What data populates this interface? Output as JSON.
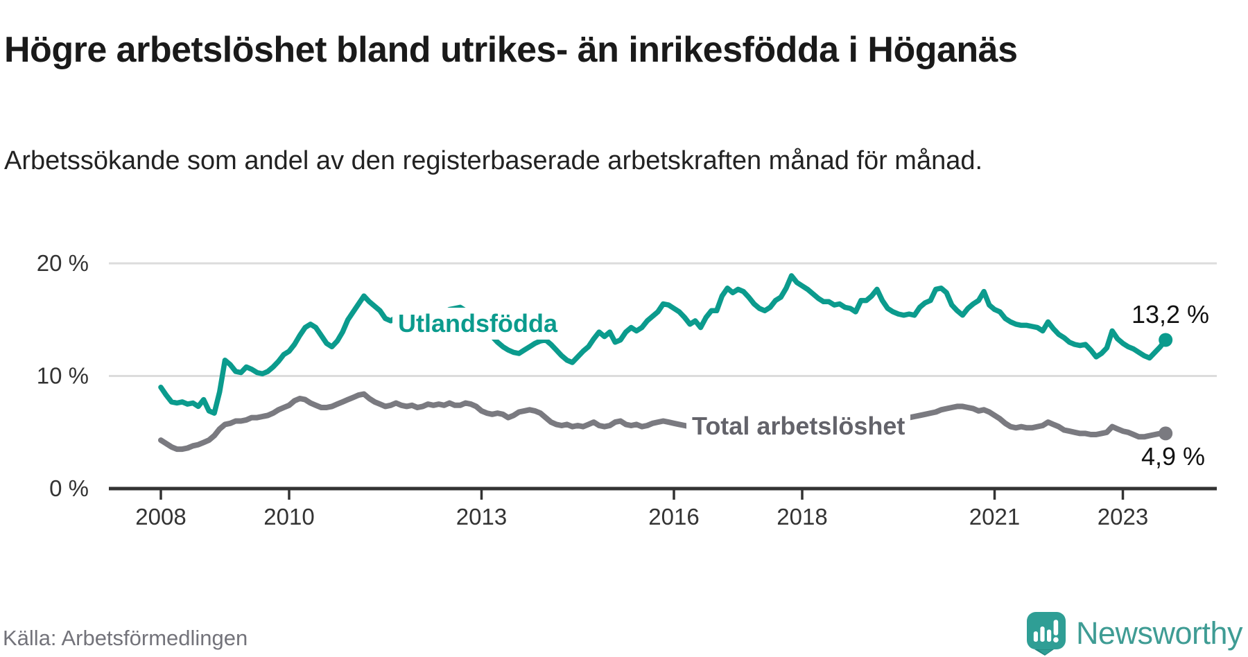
{
  "header": {
    "title": "Högre arbetslöshet bland utrikes- än inrikesfödda i Höganäs",
    "subtitle": "Arbetssökande som andel av den registerbaserade arbetskraften månad för månad."
  },
  "footer": {
    "source": "Källa: Arbetsförmedlingen",
    "brand_name": "Newsworthy",
    "brand_color": "#3f9c94"
  },
  "colors": {
    "foreign_born_line": "#0b9b8d",
    "total_line": "#7a7a80",
    "grid": "#dcdcdc",
    "axis": "#333333",
    "end_label_text": "#111111"
  },
  "chart_data": {
    "type": "line",
    "title": "Högre arbetslöshet bland utrikes- än inrikesfödda i Höganäs",
    "subtitle": "Arbetssökande som andel av den registerbaserade arbetskraften månad för månad.",
    "unit": "% av registerbaserad arbetskraft",
    "frequency": "monthly",
    "x_start": "2008-01",
    "x_end": "2023-09",
    "ylim": [
      0,
      20
    ],
    "grid": "horizontal",
    "yticks": [
      {
        "value": 0,
        "label": "0 %"
      },
      {
        "value": 10,
        "label": "10 %"
      },
      {
        "value": 20,
        "label": "20 %"
      }
    ],
    "xticks": [
      {
        "year": 2008,
        "label": "2008"
      },
      {
        "year": 2010,
        "label": "2010"
      },
      {
        "year": 2013,
        "label": "2013"
      },
      {
        "year": 2016,
        "label": "2016"
      },
      {
        "year": 2018,
        "label": "2018"
      },
      {
        "year": 2021,
        "label": "2021"
      },
      {
        "year": 2023,
        "label": "2023"
      }
    ],
    "series": [
      {
        "name": "Utlandsfödda",
        "color": "#0b9b8d",
        "end_value_label": "13,2 %",
        "last_value": 13.2,
        "values": [
          9.0,
          8.3,
          7.7,
          7.6,
          7.7,
          7.5,
          7.6,
          7.3,
          7.9,
          6.9,
          6.7,
          8.6,
          11.4,
          11.0,
          10.4,
          10.3,
          10.8,
          10.6,
          10.3,
          10.2,
          10.4,
          10.8,
          11.3,
          11.9,
          12.2,
          12.8,
          13.6,
          14.3,
          14.6,
          14.3,
          13.6,
          12.9,
          12.6,
          13.1,
          13.9,
          15.0,
          15.7,
          16.4,
          17.1,
          16.6,
          16.2,
          15.8,
          15.1,
          14.9,
          15.2,
          15.4,
          15.3,
          15.6,
          15.8,
          15.6,
          15.7,
          15.7,
          15.5,
          15.6,
          15.9,
          16.0,
          16.1,
          15.8,
          15.4,
          15.0,
          14.5,
          14.0,
          13.5,
          13.0,
          12.6,
          12.3,
          12.1,
          12.0,
          12.3,
          12.6,
          12.9,
          13.1,
          13.2,
          12.8,
          12.3,
          11.8,
          11.4,
          11.2,
          11.7,
          12.2,
          12.6,
          13.3,
          13.9,
          13.5,
          13.9,
          13.0,
          13.2,
          13.9,
          14.3,
          14.0,
          14.3,
          14.9,
          15.3,
          15.7,
          16.4,
          16.3,
          16.0,
          15.7,
          15.2,
          14.6,
          14.9,
          14.3,
          15.2,
          15.8,
          15.8,
          17.1,
          17.8,
          17.4,
          17.7,
          17.5,
          17.0,
          16.4,
          16.0,
          15.8,
          16.1,
          16.7,
          17.0,
          17.8,
          18.9,
          18.3,
          18.0,
          17.7,
          17.3,
          16.9,
          16.6,
          16.6,
          16.3,
          16.4,
          16.1,
          16.0,
          15.7,
          16.7,
          16.7,
          17.1,
          17.7,
          16.7,
          16.0,
          15.7,
          15.5,
          15.4,
          15.5,
          15.4,
          16.1,
          16.5,
          16.7,
          17.7,
          17.8,
          17.4,
          16.3,
          15.8,
          15.4,
          16.0,
          16.4,
          16.7,
          17.5,
          16.3,
          15.9,
          15.7,
          15.1,
          14.8,
          14.6,
          14.5,
          14.5,
          14.4,
          14.3,
          14.0,
          14.8,
          14.2,
          13.7,
          13.4,
          13.0,
          12.8,
          12.7,
          12.8,
          12.3,
          11.7,
          12.0,
          12.5,
          14.0,
          13.3,
          12.9,
          12.6,
          12.4,
          12.1,
          11.8,
          11.6,
          12.1,
          12.6,
          13.2
        ]
      },
      {
        "name": "Total arbetslöshet",
        "color": "#7a7a80",
        "end_value_label": "4,9 %",
        "last_value": 4.9,
        "values": [
          4.3,
          4.0,
          3.7,
          3.5,
          3.5,
          3.6,
          3.8,
          3.9,
          4.1,
          4.3,
          4.7,
          5.3,
          5.7,
          5.8,
          6.0,
          6.0,
          6.1,
          6.3,
          6.3,
          6.4,
          6.5,
          6.7,
          7.0,
          7.2,
          7.4,
          7.8,
          8.0,
          7.9,
          7.6,
          7.4,
          7.2,
          7.2,
          7.3,
          7.5,
          7.7,
          7.9,
          8.1,
          8.3,
          8.4,
          8.0,
          7.7,
          7.5,
          7.3,
          7.4,
          7.6,
          7.4,
          7.3,
          7.4,
          7.2,
          7.3,
          7.5,
          7.4,
          7.5,
          7.4,
          7.6,
          7.4,
          7.4,
          7.6,
          7.5,
          7.3,
          6.9,
          6.7,
          6.6,
          6.7,
          6.6,
          6.3,
          6.5,
          6.8,
          6.9,
          7.0,
          6.9,
          6.7,
          6.3,
          5.9,
          5.7,
          5.6,
          5.7,
          5.5,
          5.6,
          5.5,
          5.7,
          5.9,
          5.6,
          5.5,
          5.6,
          5.9,
          6.0,
          5.7,
          5.6,
          5.7,
          5.5,
          5.6,
          5.8,
          5.9,
          6.0,
          5.9,
          5.8,
          5.7,
          5.6,
          5.5,
          5.4,
          5.4,
          5.3,
          5.3,
          5.4,
          5.4,
          5.5,
          5.5,
          5.4,
          5.4,
          5.3,
          5.2,
          5.2,
          5.3,
          5.2,
          5.3,
          5.4,
          5.5,
          5.6,
          5.6,
          5.5,
          5.4,
          5.3,
          5.2,
          5.2,
          5.3,
          5.3,
          5.4,
          5.3,
          5.4,
          5.5,
          5.6,
          5.7,
          5.8,
          5.9,
          5.9,
          6.0,
          6.1,
          6.2,
          6.3,
          6.3,
          6.4,
          6.5,
          6.6,
          6.7,
          6.8,
          7.0,
          7.1,
          7.2,
          7.3,
          7.3,
          7.2,
          7.1,
          6.9,
          7.0,
          6.8,
          6.5,
          6.2,
          5.8,
          5.5,
          5.4,
          5.5,
          5.4,
          5.4,
          5.5,
          5.6,
          5.9,
          5.7,
          5.5,
          5.2,
          5.1,
          5.0,
          4.9,
          4.9,
          4.8,
          4.8,
          4.9,
          5.0,
          5.5,
          5.3,
          5.1,
          5.0,
          4.8,
          4.6,
          4.6,
          4.7,
          4.8,
          4.9,
          4.9
        ]
      }
    ],
    "legend_position": "inline-labels"
  }
}
